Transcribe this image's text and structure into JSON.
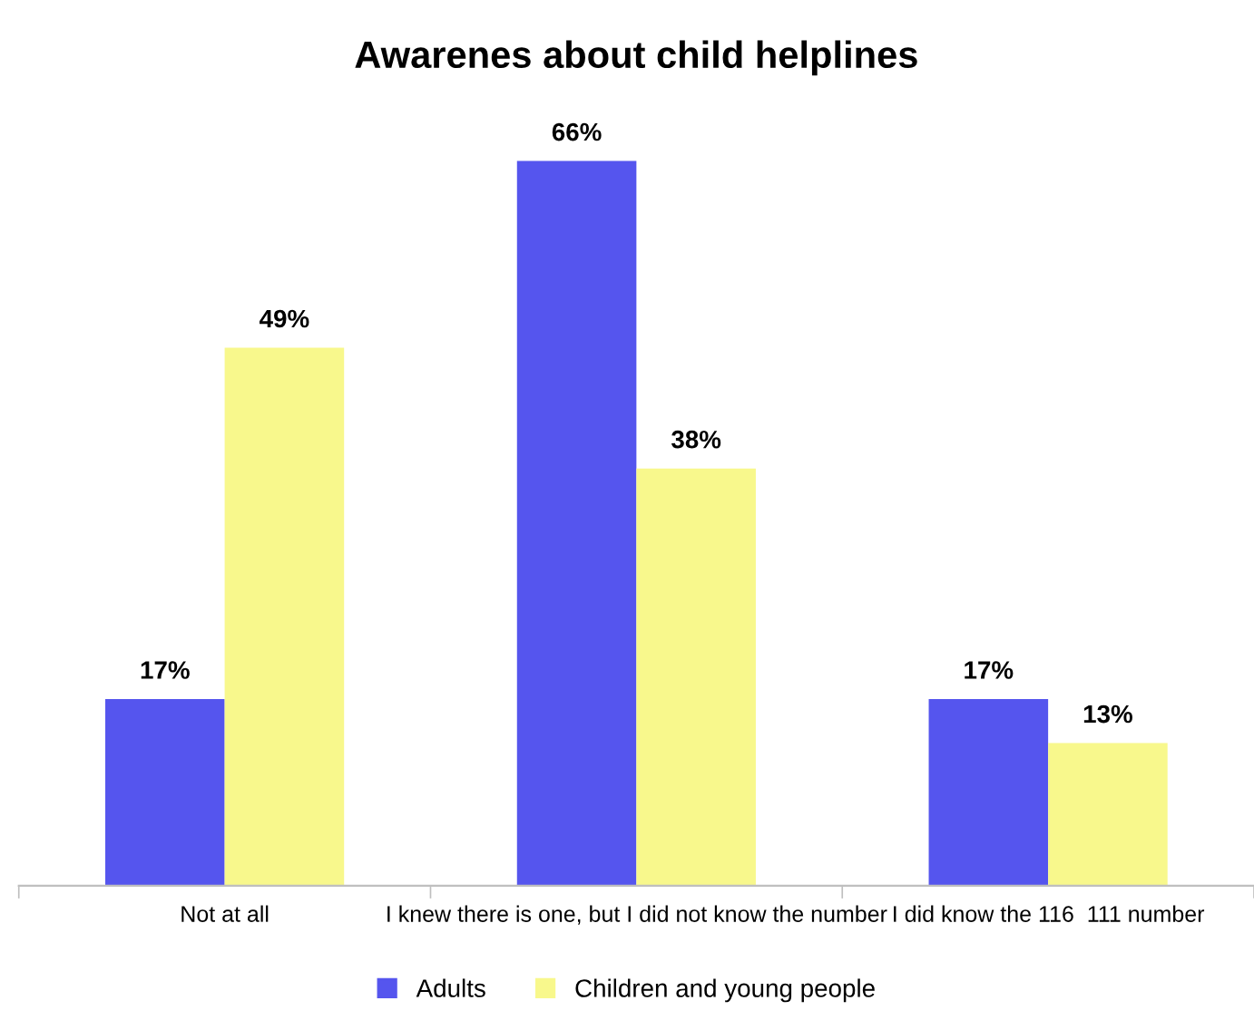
{
  "chart_data": {
    "type": "bar",
    "title": "Awarenes about child helplines",
    "categories": [
      "Not at all",
      "I knew there is one, but I did not know the number",
      "I did know the 116  111 number"
    ],
    "series": [
      {
        "name": "Adults",
        "color": "#5555ee",
        "values": [
          17,
          66,
          17
        ],
        "value_labels": [
          "17%",
          "66%",
          "17%"
        ]
      },
      {
        "name": "Children and young people",
        "color": "#f8f88c",
        "values": [
          49,
          38,
          13
        ],
        "value_labels": [
          "49%",
          "38%",
          "13%"
        ]
      }
    ],
    "legend": "bottom"
  }
}
